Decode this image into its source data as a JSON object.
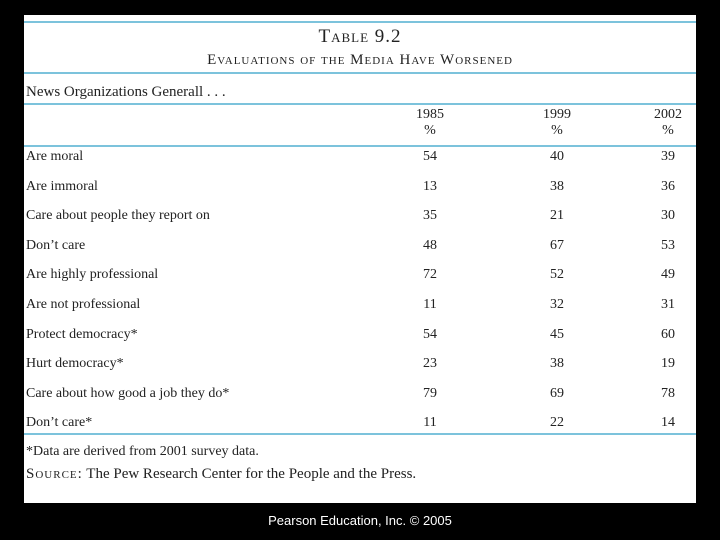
{
  "header": {
    "title": "Table 9.2",
    "subtitle": "Evaluations of the Media Have Worsened"
  },
  "table": {
    "caption": "News Organizations Generall . . .",
    "columns": [
      {
        "year": "1985",
        "unit": "%"
      },
      {
        "year": "1999",
        "unit": "%"
      },
      {
        "year": "2002",
        "unit": "%"
      }
    ],
    "rows": [
      [
        "Are moral",
        54,
        40,
        39
      ],
      [
        "Are immoral",
        13,
        38,
        36
      ],
      [
        "Care about people they report on",
        35,
        21,
        30
      ],
      [
        "Don’t care",
        48,
        67,
        53
      ],
      [
        "Are highly professional",
        72,
        52,
        49
      ],
      [
        "Are not professional",
        11,
        32,
        31
      ],
      [
        "Protect democracy*",
        54,
        45,
        60
      ],
      [
        "Hurt democracy*",
        23,
        38,
        19
      ],
      [
        "Care about how good a job they do*",
        79,
        69,
        78
      ],
      [
        "Don’t care*",
        11,
        22,
        14
      ]
    ]
  },
  "notes": {
    "footnote": "*Data are derived from 2001 survey data.",
    "source_label": "Source:",
    "source_text": "The Pew Research Center for the People and the Press."
  },
  "footer": "Pearson Education, Inc. © 2005"
}
